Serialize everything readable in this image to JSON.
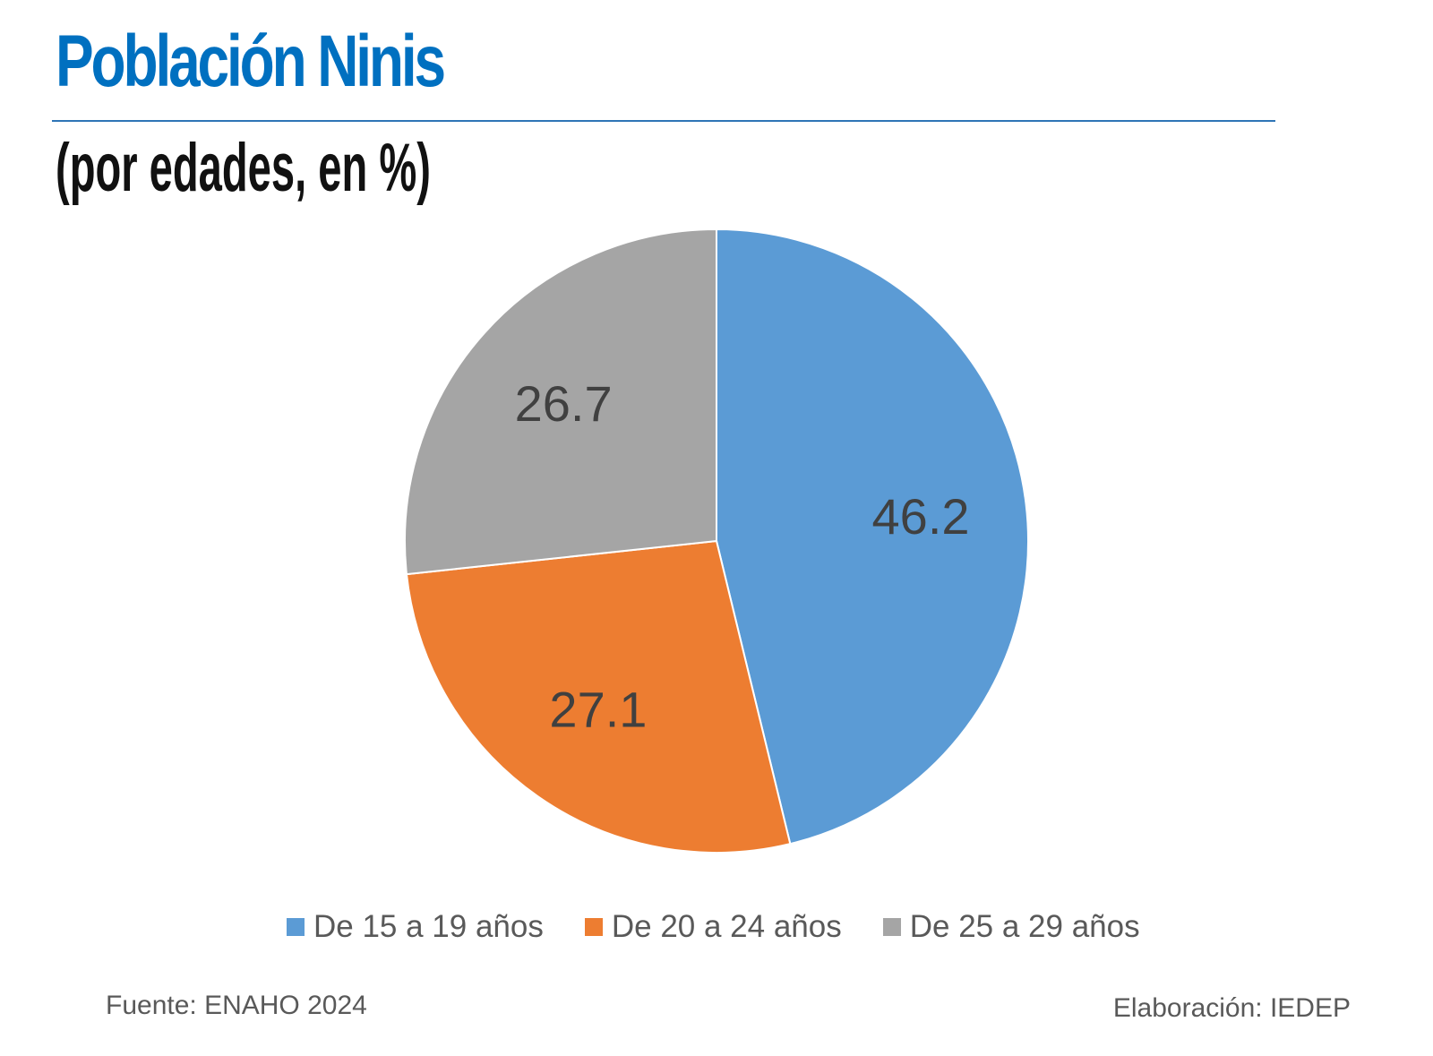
{
  "header": {
    "title": "Población Ninis",
    "subtitle": "(por edades, en %)"
  },
  "colors": {
    "title": "#0070c0",
    "rule": "#2e75b6",
    "series_1": "#5b9bd5",
    "series_2": "#ed7d31",
    "series_3": "#a5a5a5",
    "label_text": "#404040"
  },
  "chart_data": {
    "type": "pie",
    "title": "Población Ninis",
    "subtitle": "(por edades, en %)",
    "categories": [
      "De 15 a 19 años",
      "De 20 a 24 años",
      "De 25 a 29 años"
    ],
    "values": [
      46.2,
      27.1,
      26.7
    ],
    "data_labels": [
      "46.2",
      "27.1",
      "26.7"
    ],
    "colors": [
      "#5b9bd5",
      "#ed7d31",
      "#a5a5a5"
    ],
    "start": "12 o'clock, clockwise",
    "legend_position": "bottom"
  },
  "legend": {
    "items": [
      {
        "label": "De 15 a 19 años",
        "color": "#5b9bd5"
      },
      {
        "label": "De 20 a 24 años",
        "color": "#ed7d31"
      },
      {
        "label": "De 25 a 29 años",
        "color": "#a5a5a5"
      }
    ]
  },
  "footer": {
    "source": "Fuente: ENAHO 2024",
    "credit": "Elaboración: IEDEP"
  }
}
